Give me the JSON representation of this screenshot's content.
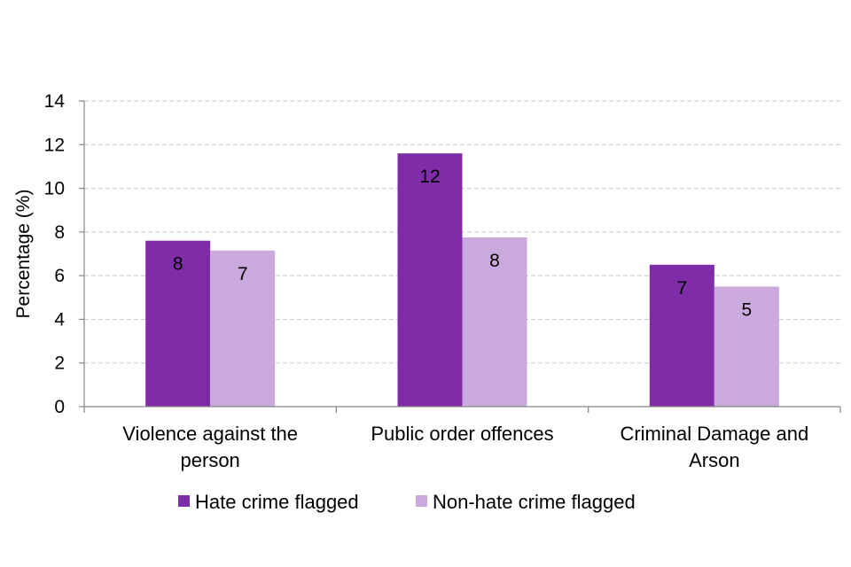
{
  "chart_data": {
    "type": "bar",
    "title": "",
    "xlabel": "",
    "ylabel": "Percentage (%)",
    "ylim": [
      0,
      14
    ],
    "yticks": [
      0,
      2,
      4,
      6,
      8,
      10,
      12,
      14
    ],
    "grid": true,
    "legend_position": "bottom",
    "categories": [
      [
        "Violence against the",
        "person"
      ],
      [
        "Public order offences"
      ],
      [
        "Criminal Damage and",
        "Arson"
      ]
    ],
    "series": [
      {
        "name": "Hate crime flagged",
        "color": "#7f2ca8",
        "values": [
          7.6,
          11.6,
          6.5
        ],
        "labels": [
          "8",
          "12",
          "7"
        ]
      },
      {
        "name": "Non-hate crime flagged",
        "color": "#caa9dc",
        "values": [
          7.15,
          7.75,
          5.5
        ],
        "labels": [
          "7",
          "8",
          "5"
        ]
      }
    ]
  }
}
